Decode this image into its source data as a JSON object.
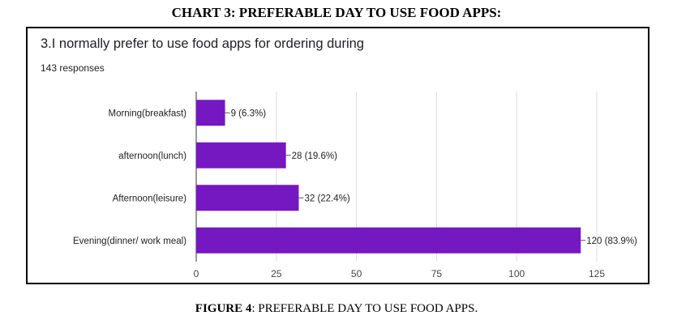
{
  "document": {
    "heading": "CHART 3: PREFERABLE DAY TO USE FOOD APPS:",
    "caption_label": "FIGURE 4",
    "caption_text": ": PREFERABLE DAY TO USE FOOD APPS."
  },
  "chart_data": {
    "type": "bar",
    "orientation": "horizontal",
    "title": "3.I normally prefer to use food apps for ordering during",
    "subtitle": "143 responses",
    "categories": [
      "Morning(breakfast)",
      "afternoon(lunch)",
      "Afternoon(leisure)",
      "Evening(dinner/ work meal)"
    ],
    "values": [
      9,
      28,
      32,
      120
    ],
    "data_labels": [
      "9 (6.3%)",
      "28 (19.6%)",
      "32 (22.4%)",
      "120 (83.9%)"
    ],
    "x_ticks": [
      0,
      25,
      50,
      75,
      100,
      125
    ],
    "xlim": [
      0,
      125
    ],
    "grid": true,
    "bar_color": "#7618c1",
    "xlabel": "",
    "ylabel": ""
  }
}
